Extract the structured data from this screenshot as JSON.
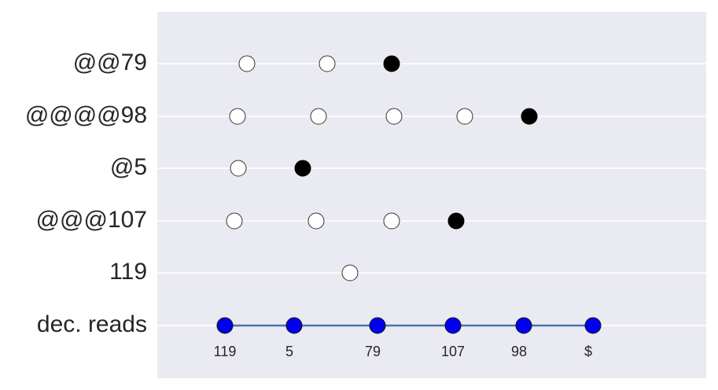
{
  "rows": [
    "@@79",
    "@@@@98",
    "@5",
    "@@@107",
    "119",
    "dec. reads"
  ],
  "decoded": [
    "119",
    "5",
    "79",
    "107",
    "98",
    "$"
  ]
}
